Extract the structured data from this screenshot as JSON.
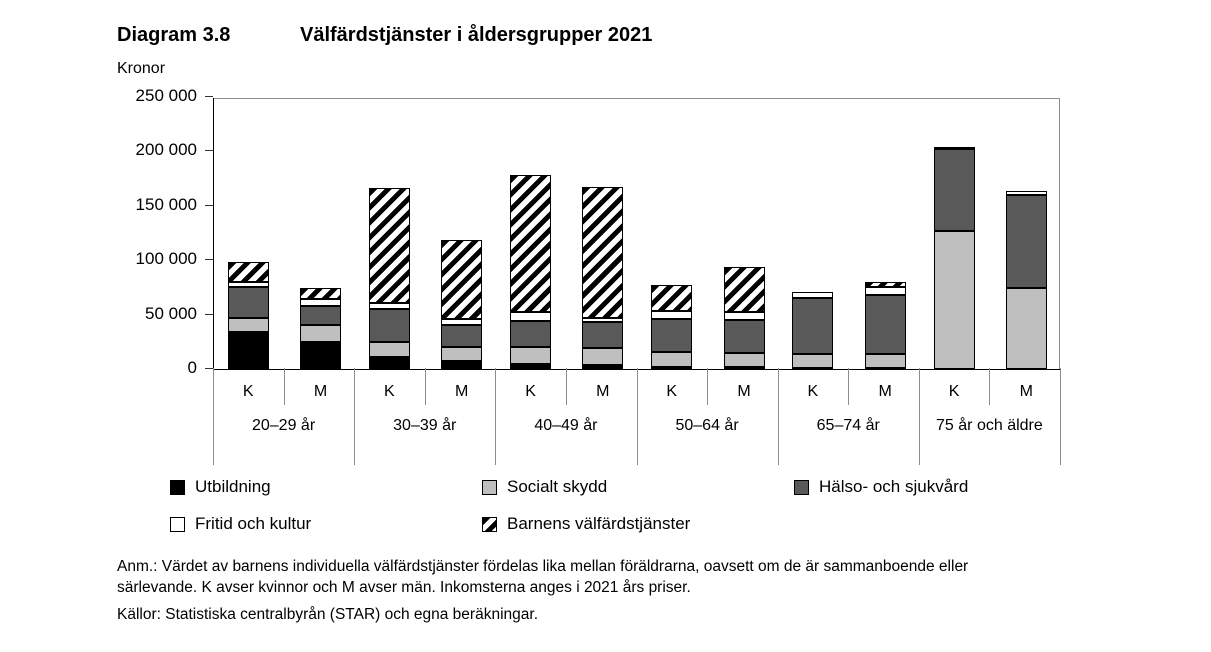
{
  "page": {
    "title_label": "Diagram 3.8",
    "title_text": "Välfärdstjänster i åldersgrupper 2021",
    "unit_label": "Kronor",
    "note_anm": "Anm.: Värdet av barnens individuella välfärdstjänster fördelas lika mellan föräldrarna, oavsett om de är sammanboende eller särlevande. K avser kvinnor och M avser män. Inkomsterna anges i 2021 års priser.",
    "note_kallor": "Källor: Statistiska centralbyrån (STAR) och egna beräkningar."
  },
  "chart_data": {
    "type": "bar",
    "stacked": true,
    "title": "Välfärdstjänster i åldersgrupper 2021",
    "ylabel": "Kronor",
    "xlabel": "",
    "ylim": [
      0,
      250000
    ],
    "ytick_step": 50000,
    "ytick_labels": [
      "0",
      "50 000",
      "100 000",
      "150 000",
      "200 000",
      "250 000"
    ],
    "categories": [
      "20–29 år",
      "30–39 år",
      "40–49 år",
      "50–64 år",
      "65–74 år",
      "75 år och äldre"
    ],
    "bar_labels": [
      "K",
      "M"
    ],
    "grid": false,
    "legend_position": "bottom",
    "legend_rows": [
      [
        0,
        1,
        2
      ],
      [
        3,
        4
      ]
    ],
    "series": [
      {
        "name": "Utbildning",
        "color": "#000000",
        "pattern": "solid",
        "values": [
          [
            34000,
            25000
          ],
          [
            11000,
            7000
          ],
          [
            5000,
            4000
          ],
          [
            2000,
            2000
          ],
          [
            1000,
            1000
          ],
          [
            0,
            0
          ]
        ]
      },
      {
        "name": "Socialt skydd",
        "color": "#bfbfbf",
        "pattern": "solid",
        "values": [
          [
            13000,
            15000
          ],
          [
            14000,
            13000
          ],
          [
            15000,
            15000
          ],
          [
            14000,
            13000
          ],
          [
            13000,
            13000
          ],
          [
            127000,
            74000
          ]
        ]
      },
      {
        "name": "Hälso- och sjukvård",
        "color": "#595959",
        "pattern": "solid",
        "values": [
          [
            28000,
            18000
          ],
          [
            30000,
            20000
          ],
          [
            24000,
            24000
          ],
          [
            30000,
            30000
          ],
          [
            51000,
            54000
          ],
          [
            75000,
            86000
          ]
        ]
      },
      {
        "name": "Fritid och kultur",
        "color": "#ffffff",
        "pattern": "solid",
        "values": [
          [
            5000,
            6000
          ],
          [
            6000,
            6000
          ],
          [
            8000,
            4000
          ],
          [
            7000,
            7000
          ],
          [
            6000,
            7000
          ],
          [
            2000,
            4000
          ]
        ]
      },
      {
        "name": "Barnens välfärdstjänster",
        "color": "#000000",
        "pattern": "hatch",
        "values": [
          [
            18000,
            10000
          ],
          [
            105000,
            73000
          ],
          [
            126000,
            120000
          ],
          [
            24000,
            42000
          ],
          [
            0,
            5000
          ],
          [
            0,
            0
          ]
        ]
      }
    ]
  }
}
